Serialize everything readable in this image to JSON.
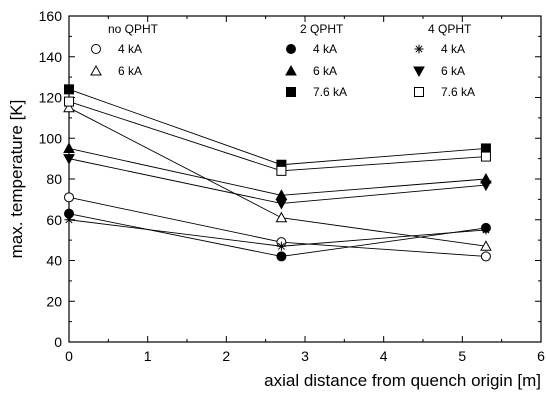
{
  "chart_data": {
    "type": "line",
    "xlabel": "axial distance from quench origin [m]",
    "ylabel": "max. temperature [K]",
    "xlim": [
      0,
      6
    ],
    "ylim": [
      0,
      160
    ],
    "x_ticks": [
      0,
      1,
      2,
      3,
      4,
      5,
      6
    ],
    "y_ticks": [
      0,
      20,
      40,
      60,
      80,
      100,
      120,
      140,
      160
    ],
    "grid": false,
    "legend_placement": "top",
    "legend_groups": [
      {
        "title": "no QPHT",
        "entries": [
          {
            "label": "4 kA",
            "marker": "circle-open"
          },
          {
            "label": "6 kA",
            "marker": "triangle-up-open"
          }
        ]
      },
      {
        "title": "2 QPHT",
        "entries": [
          {
            "label": "4 kA",
            "marker": "circle-filled"
          },
          {
            "label": "6 kA",
            "marker": "triangle-up-filled"
          },
          {
            "label": "7.6 kA",
            "marker": "square-filled"
          }
        ]
      },
      {
        "title": "4 QPHT",
        "entries": [
          {
            "label": "4 kA",
            "marker": "asterisk"
          },
          {
            "label": "6 kA",
            "marker": "triangle-down-filled"
          },
          {
            "label": "7.6 kA",
            "marker": "square-open"
          }
        ]
      }
    ],
    "series": [
      {
        "marker": "circle-open",
        "x": [
          0,
          2.7,
          5.3
        ],
        "y": [
          71,
          49,
          42
        ]
      },
      {
        "marker": "triangle-up-open",
        "x": [
          0,
          2.7,
          5.3
        ],
        "y": [
          115,
          61,
          47
        ]
      },
      {
        "marker": "circle-filled",
        "x": [
          0,
          2.7,
          5.3
        ],
        "y": [
          63,
          42,
          56
        ]
      },
      {
        "marker": "triangle-up-filled",
        "x": [
          0,
          2.7,
          5.3
        ],
        "y": [
          95,
          72,
          80
        ]
      },
      {
        "marker": "square-filled",
        "x": [
          0,
          2.7,
          5.3
        ],
        "y": [
          124,
          87,
          95
        ]
      },
      {
        "marker": "asterisk",
        "x": [
          0,
          2.7,
          5.3
        ],
        "y": [
          60,
          47,
          55
        ]
      },
      {
        "marker": "triangle-down-filled",
        "x": [
          0,
          2.7,
          5.3
        ],
        "y": [
          90,
          68,
          77
        ]
      },
      {
        "marker": "square-open",
        "x": [
          0,
          2.7,
          5.3
        ],
        "y": [
          118,
          84,
          91
        ]
      }
    ]
  }
}
